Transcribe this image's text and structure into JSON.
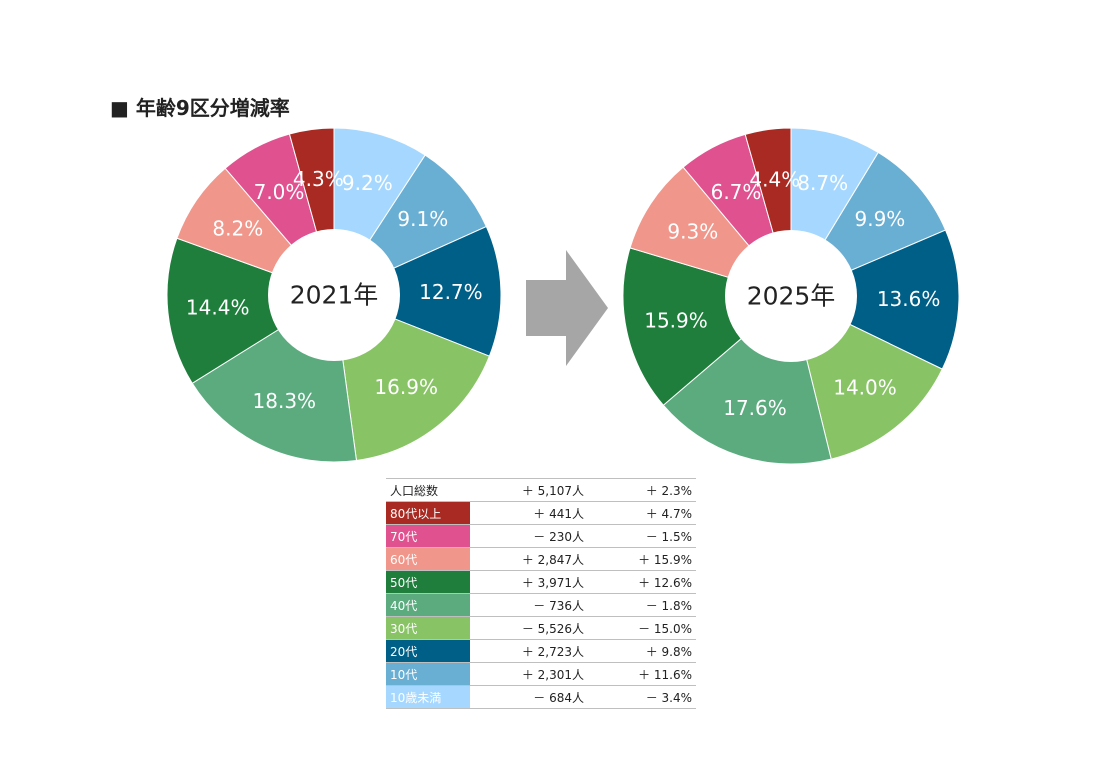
{
  "title": "■ 年齢9区分増減率",
  "arrow_color": "#a6a6a6",
  "chart_data": [
    {
      "type": "pie",
      "center_label": "2021年",
      "categories": [
        "10歳未満",
        "10代",
        "20代",
        "30代",
        "40代",
        "50代",
        "60代",
        "70代",
        "80代以上"
      ],
      "values": [
        9.2,
        9.1,
        12.7,
        16.9,
        18.3,
        14.4,
        8.2,
        7.0,
        4.3
      ],
      "labels": [
        "9.2%",
        "9.1%",
        "12.7%",
        "16.9%",
        "18.3%",
        "14.4%",
        "8.2%",
        "7.0%",
        "4.3%"
      ],
      "colors": [
        "#a6d8ff",
        "#69aed3",
        "#005f87",
        "#88c366",
        "#5bab7f",
        "#1f7e3c",
        "#f0968a",
        "#e0518f",
        "#a82a22"
      ]
    },
    {
      "type": "pie",
      "center_label": "2025年",
      "categories": [
        "10歳未満",
        "10代",
        "20代",
        "30代",
        "40代",
        "50代",
        "60代",
        "70代",
        "80代以上"
      ],
      "values": [
        8.7,
        9.9,
        13.6,
        14.0,
        17.6,
        15.9,
        9.3,
        6.7,
        4.4
      ],
      "labels": [
        "8.7%",
        "9.9%",
        "13.6%",
        "14.0%",
        "17.6%",
        "15.9%",
        "9.3%",
        "6.7%",
        "4.4%"
      ],
      "colors": [
        "#a6d8ff",
        "#69aed3",
        "#005f87",
        "#88c366",
        "#5bab7f",
        "#1f7e3c",
        "#f0968a",
        "#e0518f",
        "#a82a22"
      ]
    }
  ],
  "summary": {
    "total": {
      "label": "人口総数",
      "change": "＋ 5,107人",
      "rate": "＋ 2.3%"
    },
    "rows": [
      {
        "label": "80代以上",
        "change": "＋ 441人",
        "rate": "＋ 4.7%",
        "color": "#a82a22"
      },
      {
        "label": "70代",
        "change": "－ 230人",
        "rate": "－ 1.5%",
        "color": "#e0518f"
      },
      {
        "label": "60代",
        "change": "＋ 2,847人",
        "rate": "＋ 15.9%",
        "color": "#f0968a"
      },
      {
        "label": "50代",
        "change": "＋ 3,971人",
        "rate": "＋ 12.6%",
        "color": "#1f7e3c"
      },
      {
        "label": "40代",
        "change": "－ 736人",
        "rate": "－ 1.8%",
        "color": "#5bab7f"
      },
      {
        "label": "30代",
        "change": "－ 5,526人",
        "rate": "－ 15.0%",
        "color": "#88c366"
      },
      {
        "label": "20代",
        "change": "＋ 2,723人",
        "rate": "＋ 9.8%",
        "color": "#005f87"
      },
      {
        "label": "10代",
        "change": "＋ 2,301人",
        "rate": "＋ 11.6%",
        "color": "#69aed3"
      },
      {
        "label": "10歳未満",
        "change": "－ 684人",
        "rate": "－ 3.4%",
        "color": "#a6d8ff"
      }
    ]
  }
}
